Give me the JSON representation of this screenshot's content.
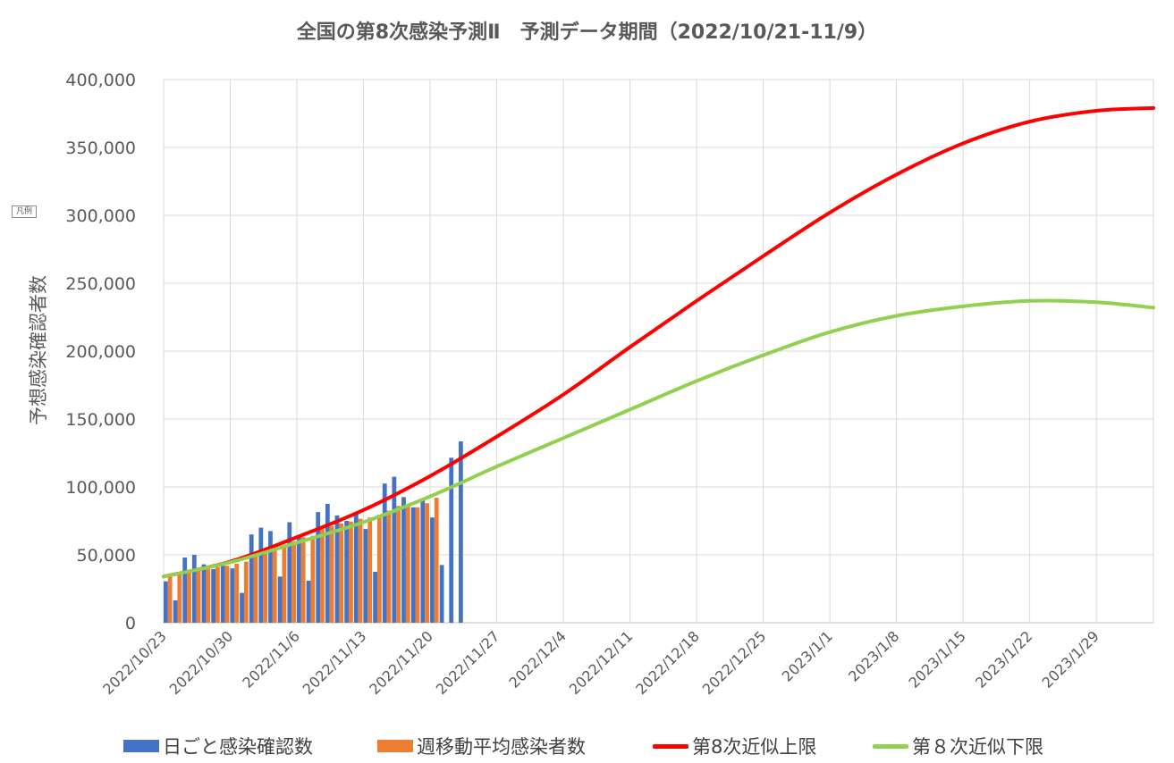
{
  "chart_data": {
    "type": "bar+line",
    "title": "全国の第8次感染予測Ⅱ　予測データ期間（2022/10/21-11/9）",
    "ylabel": "予想感染確認者数",
    "legend_tag": "凡例",
    "ylim": [
      0,
      400000
    ],
    "yticks": [
      0,
      50000,
      100000,
      150000,
      200000,
      250000,
      300000,
      350000,
      400000
    ],
    "ytick_labels": [
      "0",
      "50,000",
      "100,000",
      "150,000",
      "200,000",
      "250,000",
      "300,000",
      "350,000",
      "400,000"
    ],
    "xlim": [
      "2022-10-23",
      "2023-02-04"
    ],
    "xtick_labels": [
      "2022/10/23",
      "2022/10/30",
      "2022/11/6",
      "2022/11/13",
      "2022/11/20",
      "2022/11/27",
      "2022/12/4",
      "2022/12/11",
      "2022/12/18",
      "2022/12/25",
      "2023/1/1",
      "2023/1/8",
      "2023/1/15",
      "2023/1/22",
      "2023/1/29"
    ],
    "legend_position": "bottom",
    "grid": true,
    "dates": [
      "2022-10-23",
      "2022-10-24",
      "2022-10-25",
      "2022-10-26",
      "2022-10-27",
      "2022-10-28",
      "2022-10-29",
      "2022-10-30",
      "2022-10-31",
      "2022-11-01",
      "2022-11-02",
      "2022-11-03",
      "2022-11-04",
      "2022-11-05",
      "2022-11-06",
      "2022-11-07",
      "2022-11-08",
      "2022-11-09",
      "2022-11-10",
      "2022-11-11",
      "2022-11-12",
      "2022-11-13",
      "2022-11-14",
      "2022-11-15",
      "2022-11-16",
      "2022-11-17",
      "2022-11-18",
      "2022-11-19",
      "2022-11-20",
      "2022-11-21",
      "2022-11-22",
      "2022-11-23"
    ],
    "series": [
      {
        "name": "日ごと感染確認数",
        "kind": "bar",
        "color": "#4472C4",
        "values": [
          30500,
          16500,
          48000,
          50000,
          43000,
          39500,
          42000,
          40000,
          22000,
          65000,
          70000,
          67500,
          34000,
          74000,
          64000,
          31000,
          81500,
          87500,
          79000,
          75000,
          80000,
          69000,
          37500,
          102500,
          107500,
          92500,
          85000,
          91000,
          77500,
          42500,
          121500,
          133500
        ]
      },
      {
        "name": "週移動平均感染者数",
        "kind": "bar",
        "color": "#ED7D31",
        "values": [
          35000,
          36500,
          38500,
          39500,
          40500,
          41000,
          42000,
          43500,
          45000,
          49000,
          52500,
          55000,
          56500,
          60000,
          63000,
          64000,
          69000,
          71000,
          73000,
          74500,
          76500,
          77500,
          79500,
          82500,
          86000,
          86000,
          85000,
          88000,
          92000,
          null,
          null,
          null
        ]
      },
      {
        "name": "第8次近似上限",
        "kind": "line",
        "color": "#FF0000",
        "x": [
          "2022-10-23",
          "2022-10-30",
          "2022-11-06",
          "2022-11-13",
          "2022-11-20",
          "2022-11-27",
          "2022-12-04",
          "2022-12-11",
          "2022-12-18",
          "2022-12-25",
          "2023-01-01",
          "2023-01-08",
          "2023-01-15",
          "2023-01-22",
          "2023-01-29",
          "2023-02-04"
        ],
        "values": [
          34000,
          45000,
          63000,
          83000,
          108000,
          137000,
          168000,
          203000,
          237000,
          270000,
          302000,
          330000,
          353000,
          369000,
          377000,
          379000
        ]
      },
      {
        "name": "第８次近似下限",
        "kind": "line",
        "color": "#92D050",
        "x": [
          "2022-10-23",
          "2022-10-30",
          "2022-11-06",
          "2022-11-13",
          "2022-11-20",
          "2022-11-27",
          "2022-12-04",
          "2022-12-11",
          "2022-12-18",
          "2022-12-25",
          "2023-01-01",
          "2023-01-08",
          "2023-01-15",
          "2023-01-22",
          "2023-01-29",
          "2023-02-04"
        ],
        "values": [
          34000,
          44500,
          59000,
          74000,
          93000,
          115000,
          136000,
          157000,
          178000,
          197000,
          214000,
          226000,
          233000,
          237000,
          236000,
          232000
        ]
      }
    ]
  }
}
